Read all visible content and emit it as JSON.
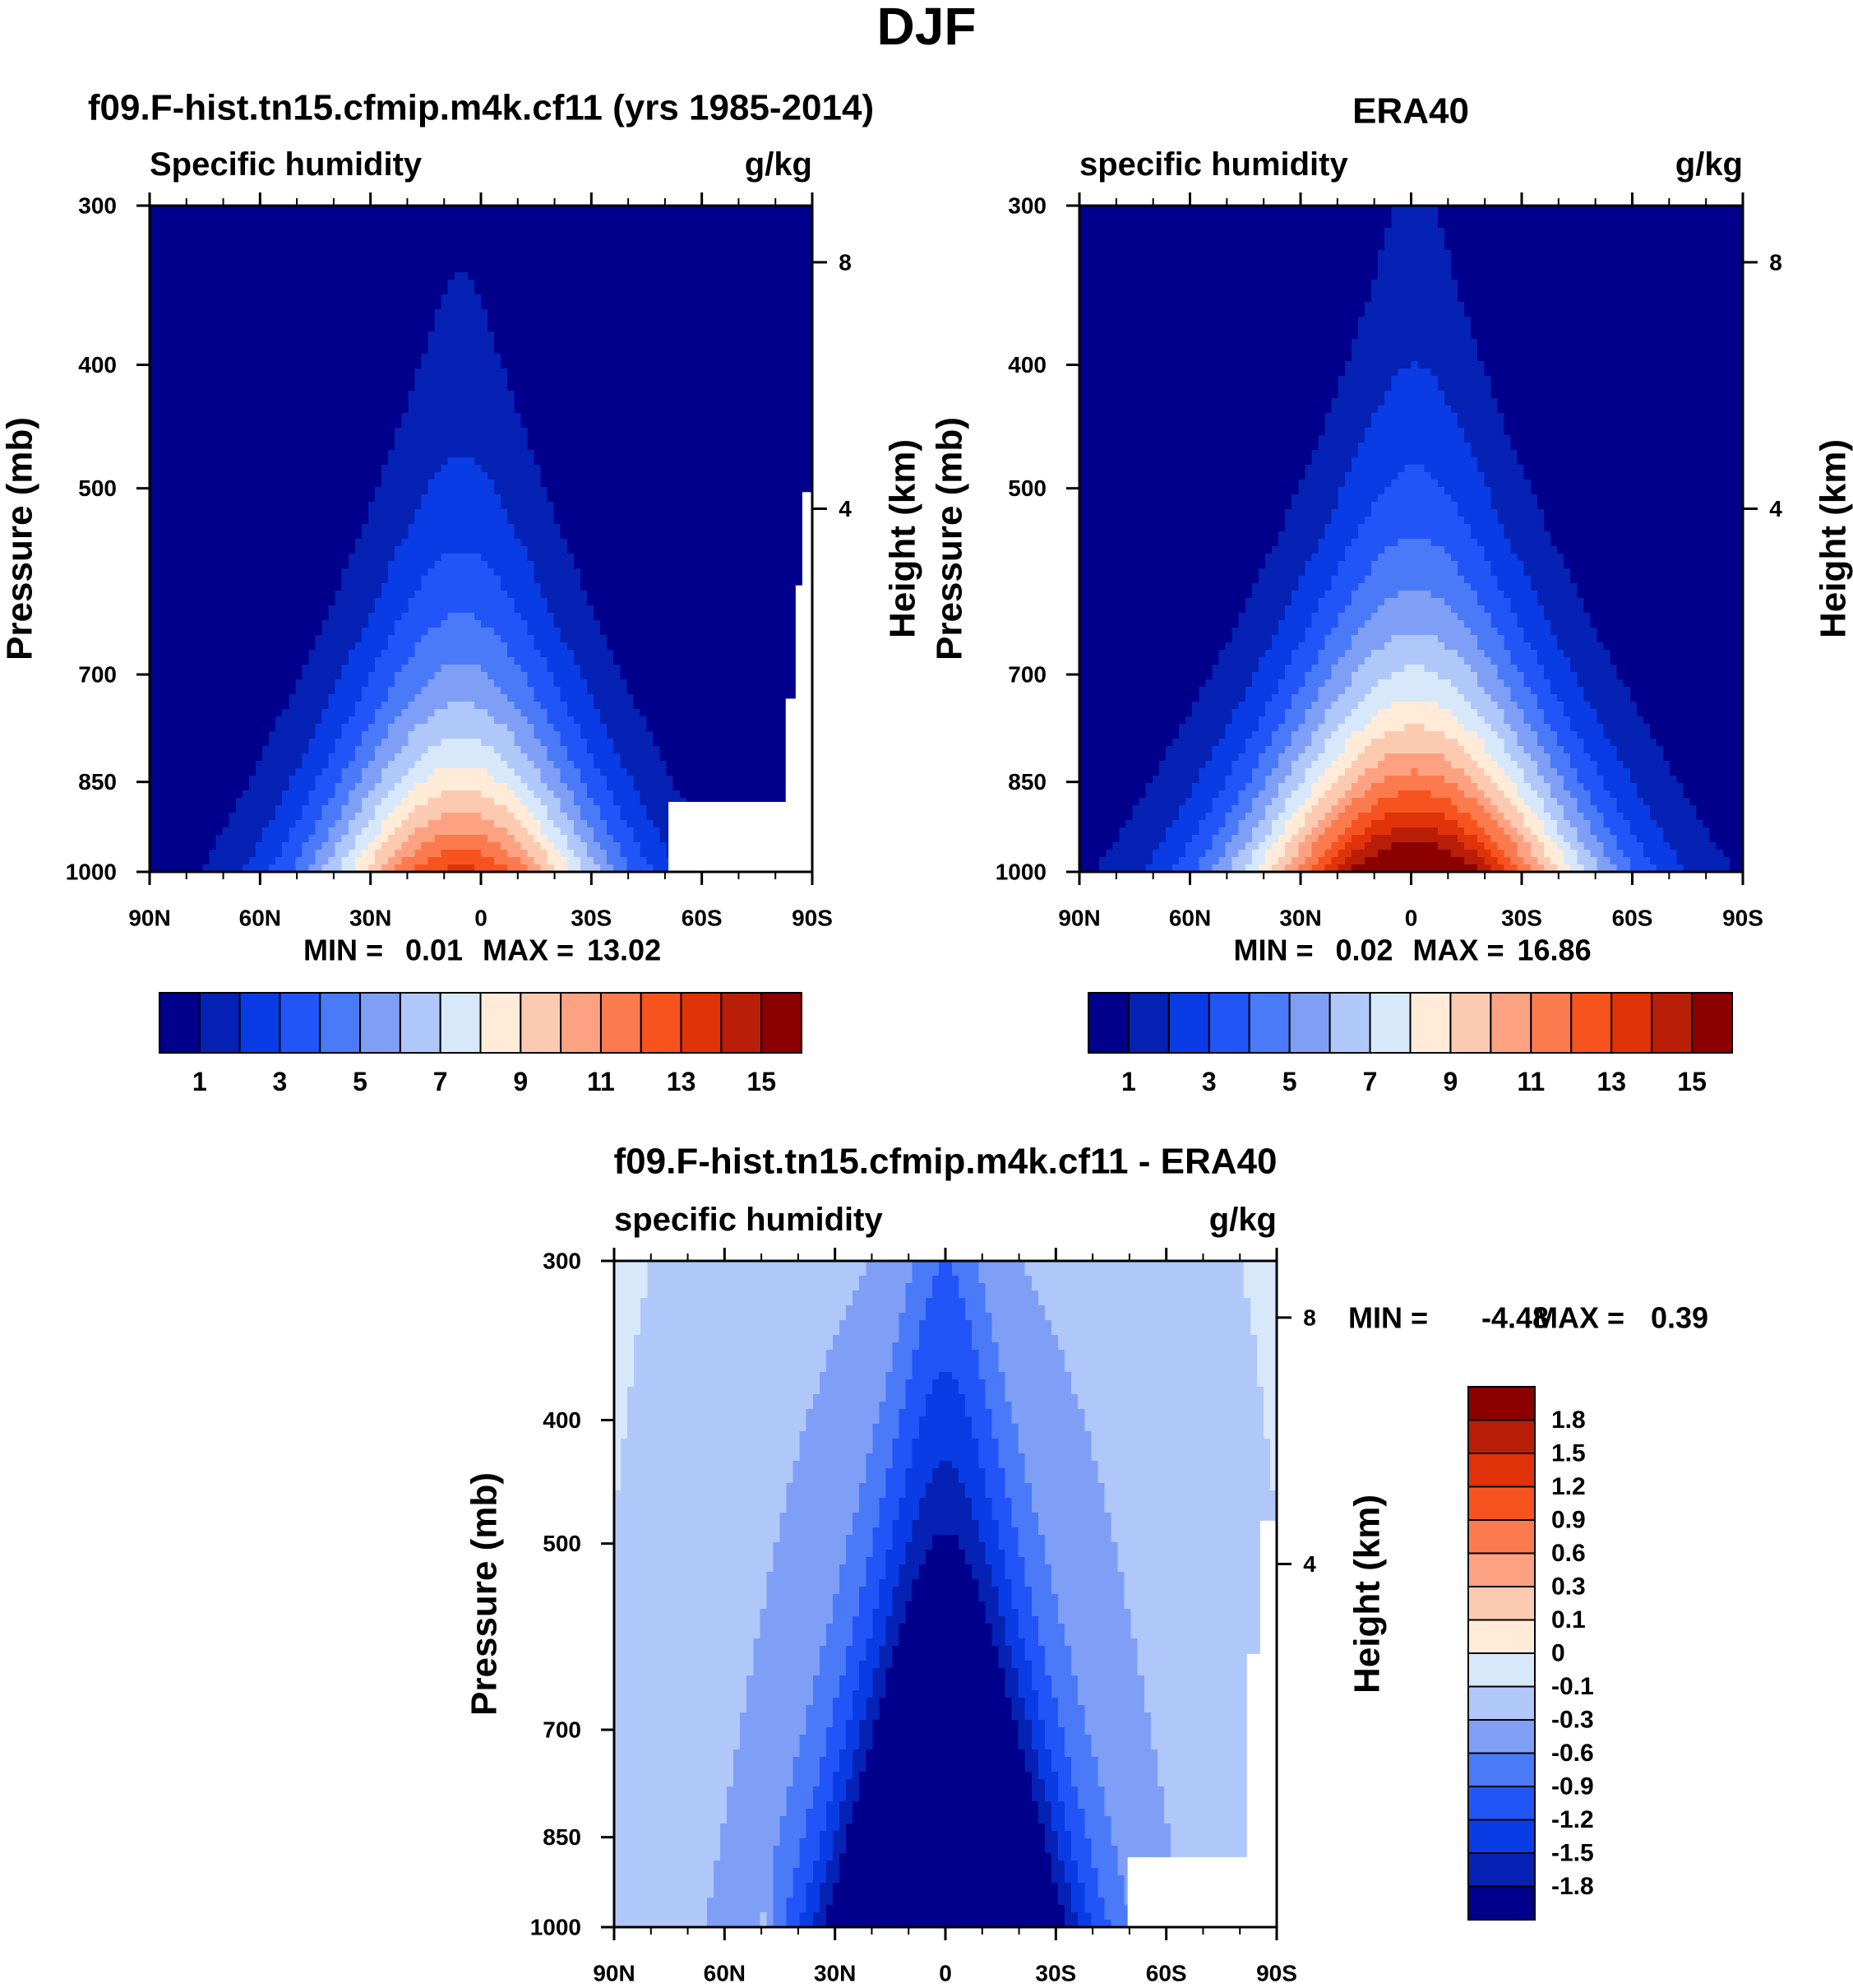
{
  "figure": {
    "title": "DJF"
  },
  "colors": {
    "blues": [
      "#00008c",
      "#0522b4",
      "#0a3ce6",
      "#2255f7",
      "#4a7af7",
      "#7f9ff7",
      "#b0c7fa",
      "#d8e8fb"
    ],
    "reds": [
      "#ffebd8",
      "#fccab0",
      "#fca283",
      "#fb7b4f",
      "#f7531f",
      "#e0330a",
      "#b81e08",
      "#8c0000"
    ],
    "missing": "#ffffff"
  },
  "chart_data": [
    {
      "type": "contour",
      "id": "model",
      "title": "f09.F-hist.tn15.cfmip.m4k.cf11 (yrs 1985-2014)",
      "left_label": "Specific humidity",
      "right_label": "g/kg",
      "ylabel": "Pressure (mb)",
      "ylabel_right": "Height (km)",
      "x_ticks": [
        "90N",
        "60N",
        "30N",
        "0",
        "30S",
        "60S",
        "90S"
      ],
      "y_ticks": [
        "300",
        "400",
        "500",
        "700",
        "850",
        "1000"
      ],
      "y_ticks_right": [
        "8",
        "4"
      ],
      "ylim": [
        1000,
        300
      ],
      "xlim": [
        90,
        -90
      ],
      "stats": {
        "min_label": "MIN =",
        "min": "0.01",
        "max_label": "MAX =",
        "max": "13.02"
      },
      "colorbar_labels": [
        "1",
        "3",
        "5",
        "7",
        "9",
        "11",
        "13",
        "15"
      ],
      "levels": [
        1,
        2,
        3,
        4,
        5,
        6,
        7,
        8,
        9,
        10,
        11,
        12,
        13,
        14,
        15
      ],
      "field_max": 13.02,
      "field_min": 0.01
    },
    {
      "type": "contour",
      "id": "era",
      "title": "ERA40",
      "left_label": "specific humidity",
      "right_label": "g/kg",
      "ylabel": "Pressure (mb)",
      "ylabel_right": "Height (km)",
      "x_ticks": [
        "90N",
        "60N",
        "30N",
        "0",
        "30S",
        "60S",
        "90S"
      ],
      "y_ticks": [
        "300",
        "400",
        "500",
        "700",
        "850",
        "1000"
      ],
      "y_ticks_right": [
        "8",
        "4"
      ],
      "ylim": [
        1000,
        300
      ],
      "xlim": [
        90,
        -90
      ],
      "stats": {
        "min_label": "MIN =",
        "min": "0.02",
        "max_label": "MAX =",
        "max": "16.86"
      },
      "colorbar_labels": [
        "1",
        "3",
        "5",
        "7",
        "9",
        "11",
        "13",
        "15"
      ],
      "levels": [
        1,
        2,
        3,
        4,
        5,
        6,
        7,
        8,
        9,
        10,
        11,
        12,
        13,
        14,
        15
      ],
      "field_max": 16.86,
      "field_min": 0.02
    },
    {
      "type": "contour",
      "id": "diff",
      "title": "f09.F-hist.tn15.cfmip.m4k.cf11 - ERA40",
      "left_label": "specific humidity",
      "right_label": "g/kg",
      "ylabel": "Pressure (mb)",
      "ylabel_right": "Height (km)",
      "x_ticks": [
        "90N",
        "60N",
        "30N",
        "0",
        "30S",
        "60S",
        "90S"
      ],
      "y_ticks": [
        "300",
        "400",
        "500",
        "700",
        "850",
        "1000"
      ],
      "y_ticks_right": [
        "8",
        "4"
      ],
      "ylim": [
        1000,
        300
      ],
      "xlim": [
        90,
        -90
      ],
      "stats": {
        "min_label": "MIN =",
        "min": "-4.48",
        "max_label": "MAX =",
        "max": "0.39"
      },
      "colorbar_labels": [
        "1.8",
        "1.5",
        "1.2",
        "0.9",
        "0.6",
        "0.3",
        "0.1",
        "0",
        "-0.1",
        "-0.3",
        "-0.6",
        "-0.9",
        "-1.2",
        "-1.5",
        "-1.8"
      ],
      "levels": [
        -1.8,
        -1.5,
        -1.2,
        -0.9,
        -0.6,
        -0.3,
        -0.1,
        0,
        0.1,
        0.3,
        0.6,
        0.9,
        1.2,
        1.5,
        1.8
      ],
      "field_max": 0.39,
      "field_min": -4.48
    }
  ]
}
